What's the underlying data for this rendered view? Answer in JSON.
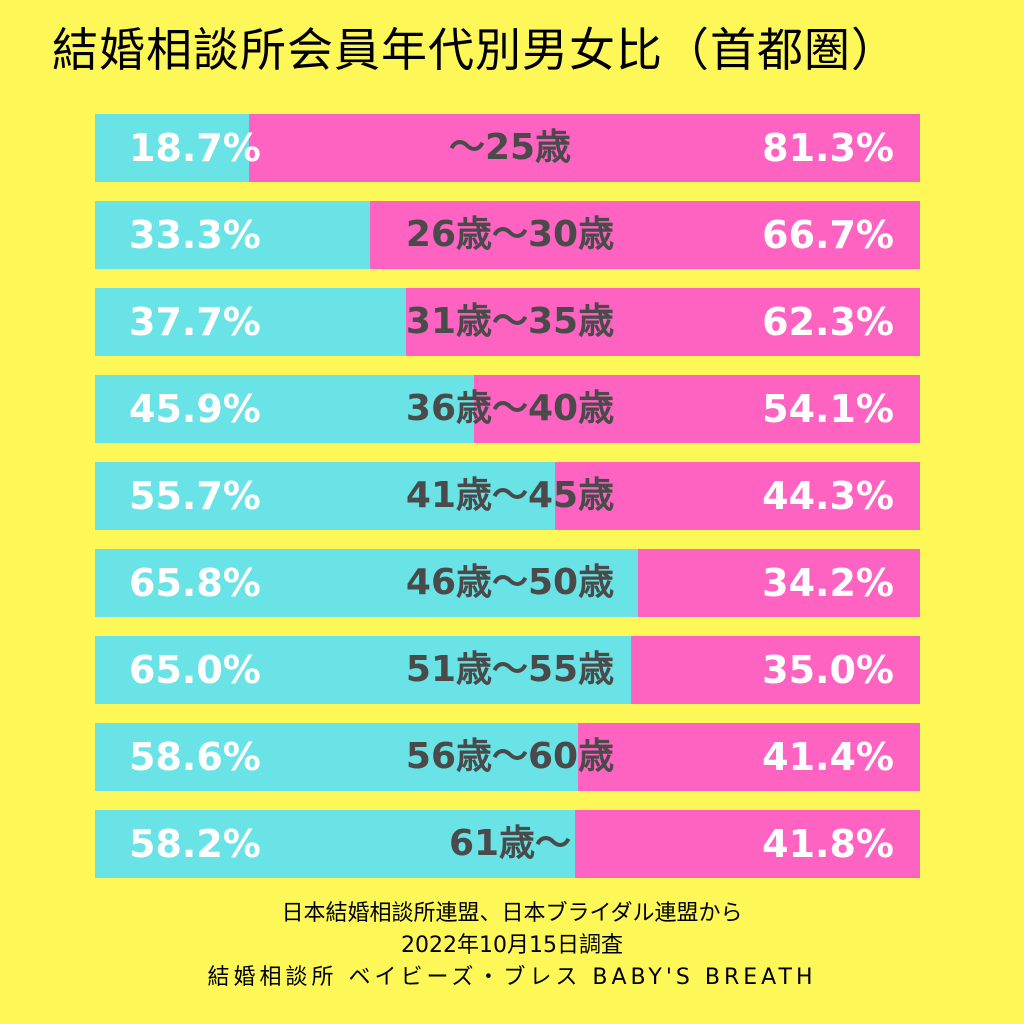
{
  "title": "結婚相談所会員年代別男女比（首都圏）",
  "colors": {
    "background": "#fdf858",
    "male": "#69e3e6",
    "female": "#ff63c1",
    "age_text": "#4a4a4a"
  },
  "chart_data": {
    "type": "bar",
    "stacked": true,
    "orientation": "horizontal",
    "categories": [
      "～25歳",
      "26歳～30歳",
      "31歳～35歳",
      "36歳～40歳",
      "41歳～45歳",
      "46歳～50歳",
      "51歳～55歳",
      "56歳～60歳",
      "61歳～"
    ],
    "series": [
      {
        "values": [
          18.7,
          33.3,
          37.7,
          45.9,
          55.7,
          65.8,
          65.0,
          58.6,
          58.2
        ],
        "labels": [
          "18.7%",
          "33.3%",
          "37.7%",
          "45.9%",
          "55.7%",
          "65.8%",
          "65.0%",
          "58.6%",
          "58.2%"
        ]
      },
      {
        "values": [
          81.3,
          66.7,
          62.3,
          54.1,
          44.3,
          34.2,
          35.0,
          41.4,
          41.8
        ],
        "labels": [
          "81.3%",
          "66.7%",
          "62.3%",
          "54.1%",
          "44.3%",
          "34.2%",
          "35.0%",
          "41.4%",
          "41.8%"
        ]
      }
    ],
    "xlim": [
      0,
      100
    ]
  },
  "footer": {
    "line1": "日本結婚相談所連盟、日本ブライダル連盟から",
    "line2": "2022年10月15日調査",
    "line3": "結婚相談所 ベイビーズ・ブレス BABY'S BREATH"
  }
}
